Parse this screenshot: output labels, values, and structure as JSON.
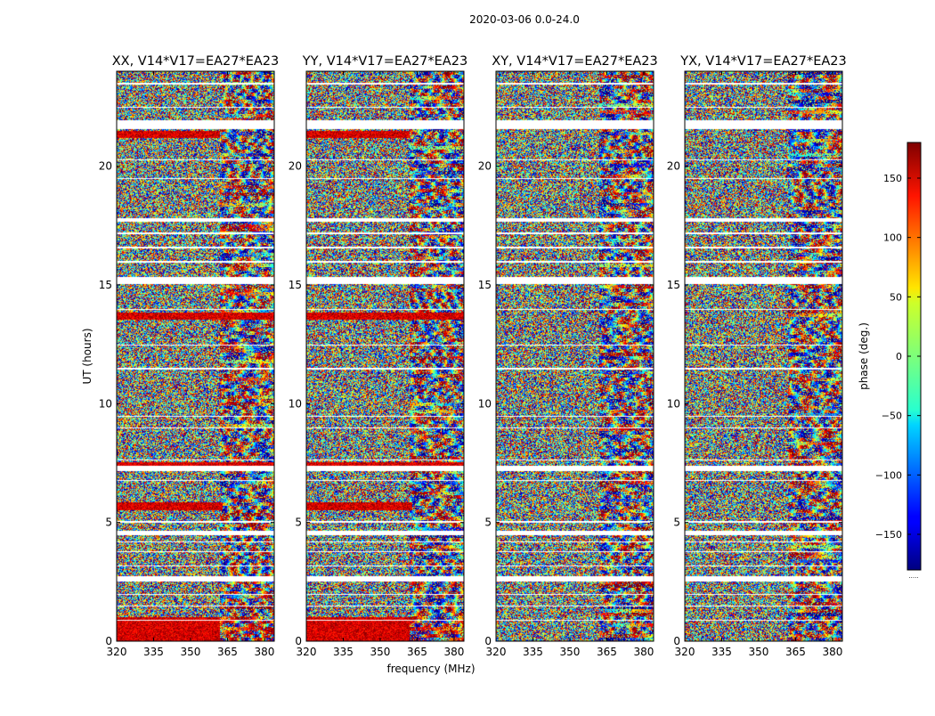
{
  "figure_title": "2020-03-06 0.0-24.0",
  "chart_data": {
    "type": "heatmap",
    "title": "2020-03-06 0.0-24.0",
    "xlabel": "frequency (MHz)",
    "ylabel": "UT (hours)",
    "xlim": [
      320,
      384
    ],
    "ylim": [
      0,
      24
    ],
    "xticks": [
      320,
      335,
      350,
      365,
      380
    ],
    "yticks": [
      0,
      5,
      10,
      15,
      20
    ],
    "colormap": "jet",
    "colorbar": {
      "label": "phase (deg.)",
      "vmin": -180,
      "vmax": 180,
      "ticks": [
        150,
        100,
        50,
        0,
        -50,
        -100,
        -150
      ],
      "tick_labels": [
        "150",
        "100",
        "50",
        "0",
        "−50",
        "−100",
        "−150"
      ],
      "footer_text": "....."
    },
    "flagged_ut_bands": [
      [
        0.85,
        0.9
      ],
      [
        1.45,
        1.5
      ],
      [
        1.95,
        2.0
      ],
      [
        2.5,
        2.75
      ],
      [
        3.15,
        3.2
      ],
      [
        3.75,
        3.8
      ],
      [
        4.15,
        4.2
      ],
      [
        4.45,
        4.65
      ],
      [
        5.0,
        5.05
      ],
      [
        6.75,
        6.8
      ],
      [
        7.15,
        7.4
      ],
      [
        7.6,
        7.65
      ],
      [
        8.95,
        9.0
      ],
      [
        9.45,
        9.5
      ],
      [
        11.45,
        11.5
      ],
      [
        12.45,
        12.5
      ],
      [
        13.95,
        14.0
      ],
      [
        15.05,
        15.35
      ],
      [
        15.95,
        16.0
      ],
      [
        16.55,
        16.6
      ],
      [
        17.15,
        17.2
      ],
      [
        17.65,
        17.8
      ],
      [
        19.45,
        19.5
      ],
      [
        20.25,
        20.3
      ],
      [
        21.55,
        21.95
      ],
      [
        22.45,
        22.5
      ],
      [
        23.45,
        23.5
      ]
    ],
    "panels": [
      {
        "name": "XX",
        "title": "XX, V14*V17=EA27*EA23",
        "red_phase_bands": [
          [
            0.0,
            1.0,
            362
          ],
          [
            5.5,
            5.85,
            363
          ],
          [
            7.3,
            7.55,
            384
          ],
          [
            13.55,
            13.85,
            384
          ],
          [
            21.2,
            21.5,
            362
          ]
        ]
      },
      {
        "name": "YY",
        "title": "YY, V14*V17=EA27*EA23",
        "red_phase_bands": [
          [
            0.0,
            1.0,
            362
          ],
          [
            5.5,
            5.85,
            363
          ],
          [
            7.3,
            7.55,
            384
          ],
          [
            13.55,
            13.85,
            384
          ],
          [
            21.2,
            21.5,
            362
          ]
        ]
      },
      {
        "name": "XY",
        "title": "XY, V14*V17=EA27*EA23",
        "red_phase_bands": []
      },
      {
        "name": "YX",
        "title": "YX, V14*V17=EA27*EA23",
        "red_phase_bands": []
      }
    ]
  }
}
